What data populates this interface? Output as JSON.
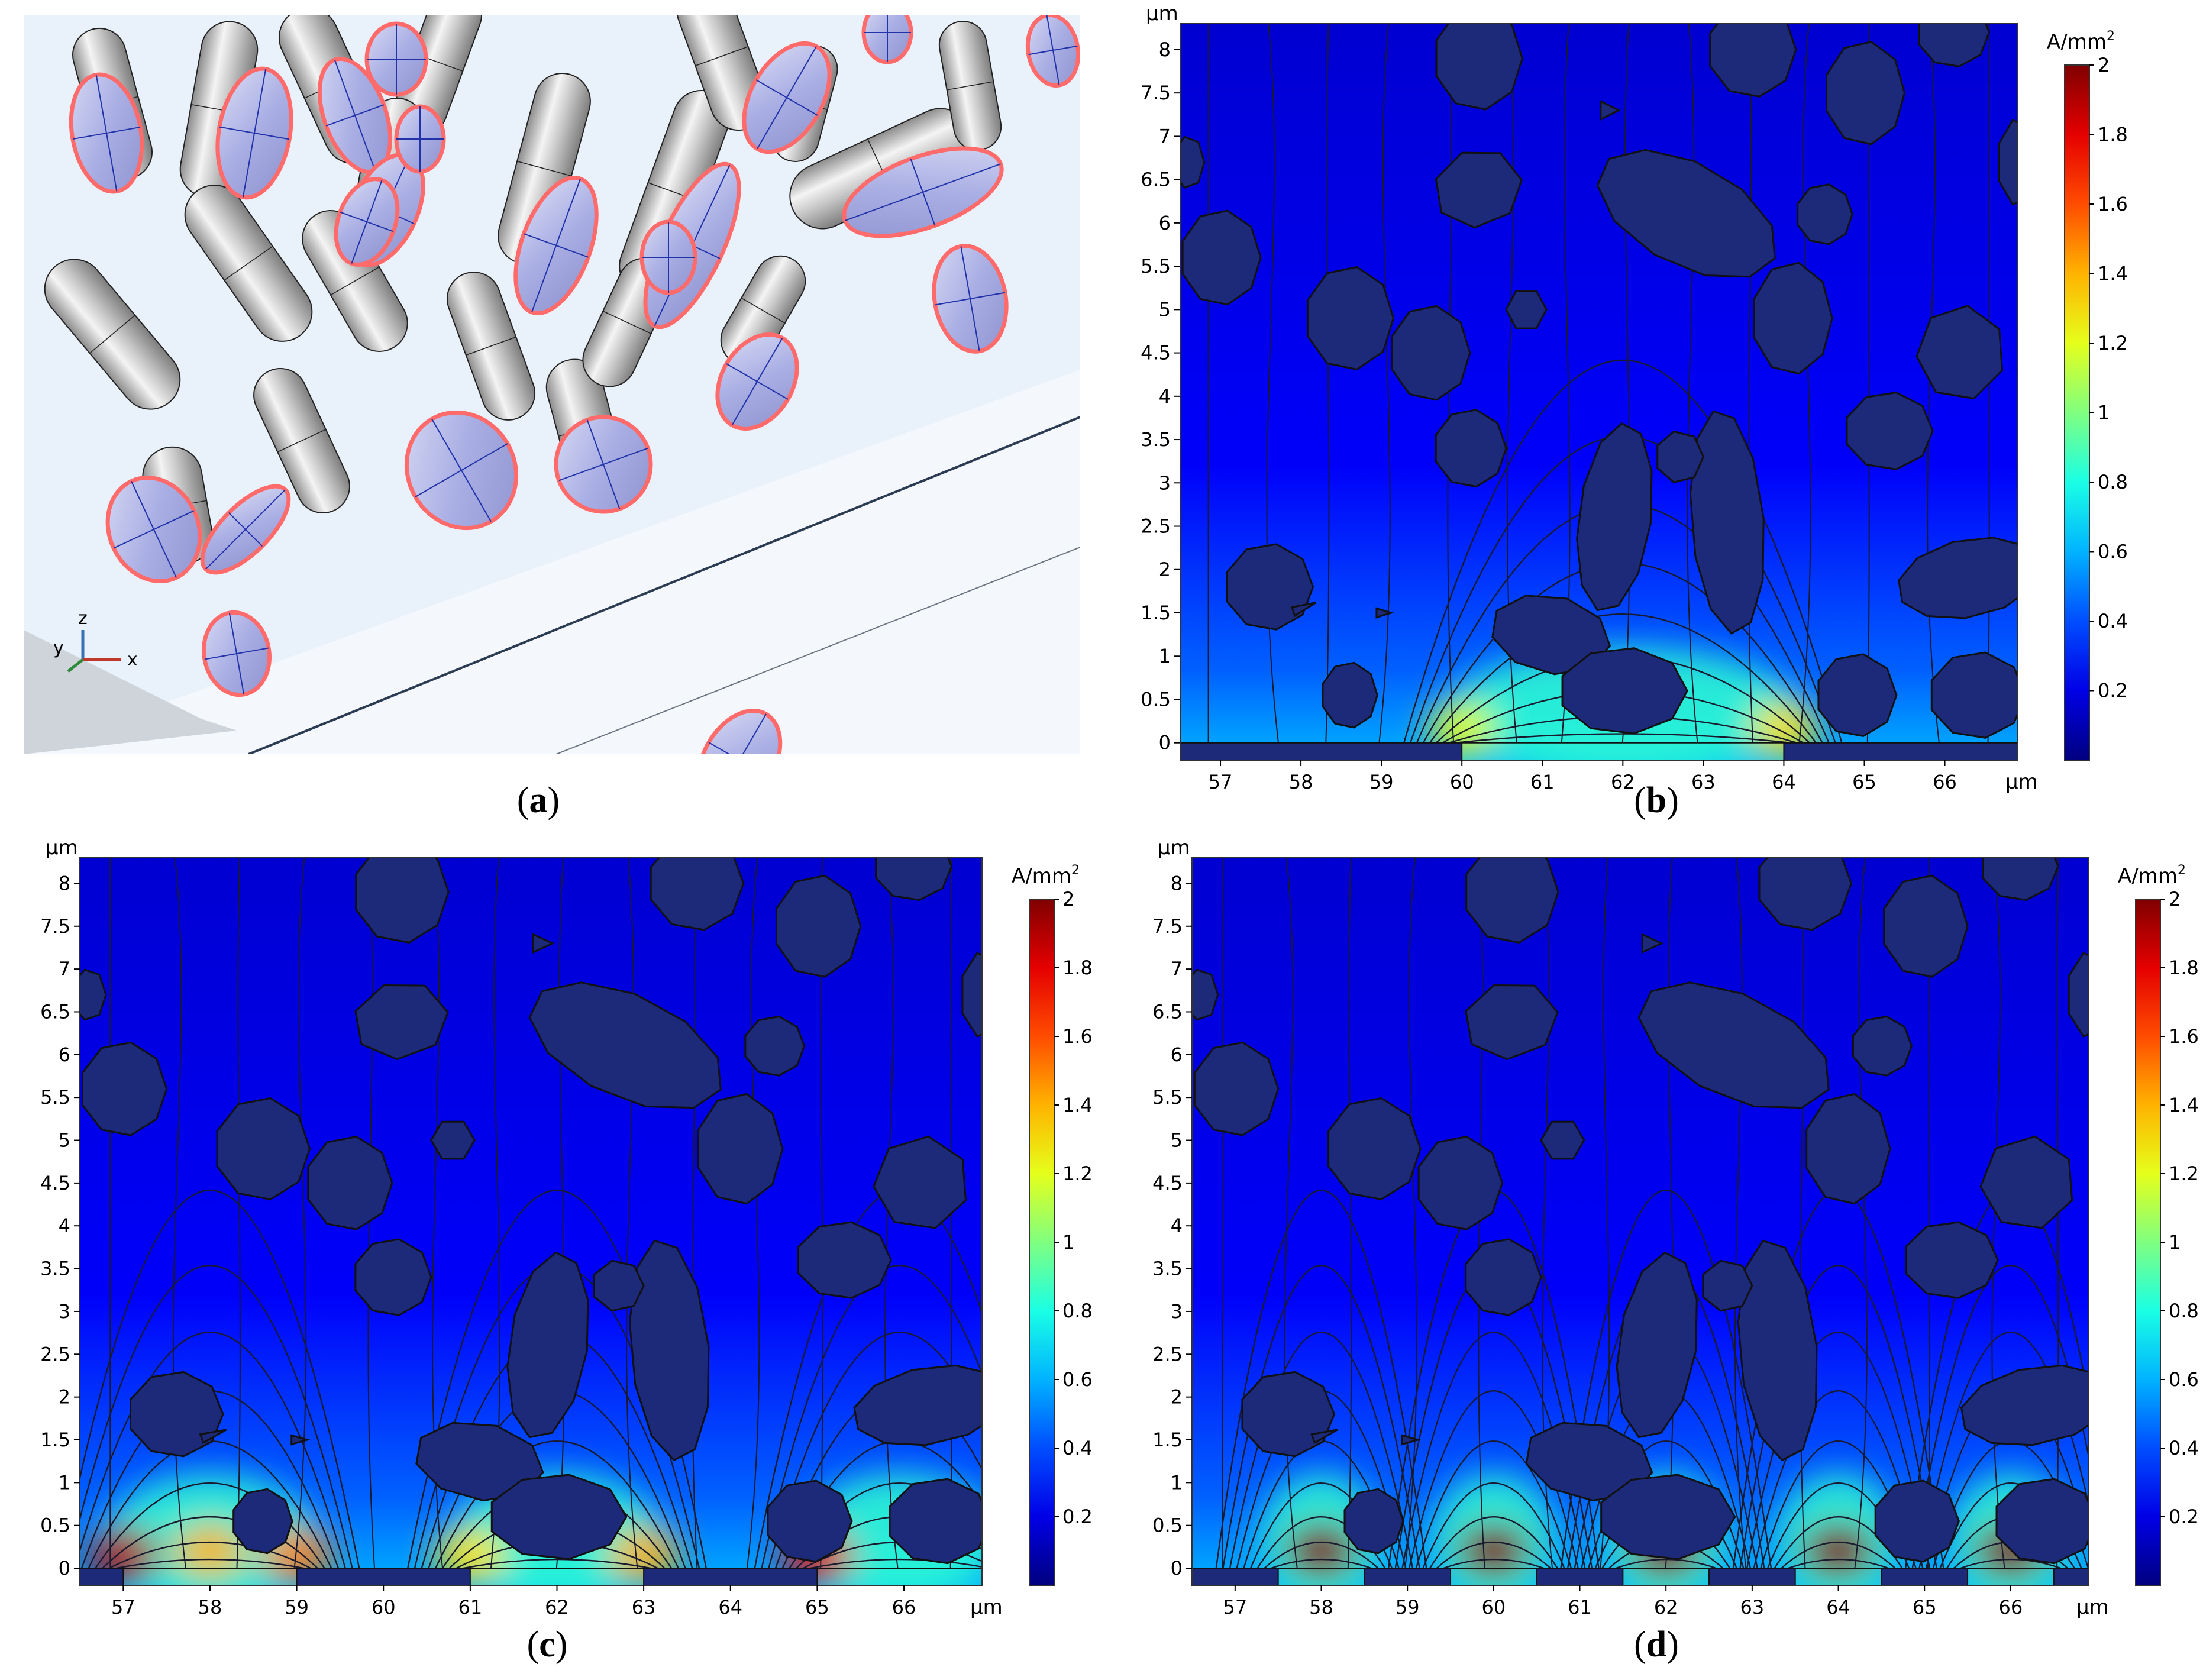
{
  "captions": [
    "a",
    "b",
    "c",
    "d"
  ],
  "axis": {
    "unit": "µm",
    "x_ticks": [
      57,
      58,
      59,
      60,
      61,
      62,
      63,
      64,
      65,
      66
    ],
    "y_ticks": [
      "0",
      "0.5",
      "1",
      "1.5",
      "2",
      "2.5",
      "3",
      "3.5",
      "4",
      "4.5",
      "5",
      "5.5",
      "6",
      "6.5",
      "7",
      "7.5",
      "8"
    ]
  },
  "colorbar": {
    "unit": "A/mm",
    "unit_superscript": "2",
    "ticks": [
      "0.2",
      "0.4",
      "0.6",
      "0.8",
      "1",
      "1.2",
      "1.4",
      "1.6",
      "1.8",
      "2"
    ],
    "max_label": "2",
    "range": [
      0,
      2
    ]
  },
  "triad": {
    "z": "z",
    "y": "y",
    "x": "x"
  },
  "chart_data": [
    {
      "panel": "b",
      "type": "heatmap",
      "xlim": [
        56.5,
        66.9
      ],
      "ylim": [
        -0.2,
        8.3
      ],
      "electrode_segments_x": [
        [
          56.5,
          60.0
        ],
        [
          64.0,
          66.9
        ]
      ],
      "open_windows_x": [
        [
          60.0,
          64.0
        ]
      ],
      "hot_spots": [
        {
          "x": 60.0,
          "y": 0.0,
          "value": 1.2
        },
        {
          "x": 64.0,
          "y": 0.0,
          "value": 1.3
        }
      ]
    },
    {
      "panel": "c",
      "type": "heatmap",
      "xlim": [
        56.5,
        66.9
      ],
      "ylim": [
        -0.2,
        8.3
      ],
      "electrode_segments_x": [
        [
          56.5,
          57.0
        ],
        [
          59.0,
          61.0
        ],
        [
          63.0,
          65.0
        ]
      ],
      "open_windows_x": [
        [
          57.0,
          59.0
        ],
        [
          61.0,
          63.0
        ],
        [
          65.0,
          66.9
        ]
      ],
      "hot_spots": [
        {
          "x": 57.0,
          "y": 0.0,
          "value": 1.9
        },
        {
          "x": 58.0,
          "y": 0.05,
          "value": 1.4
        },
        {
          "x": 59.0,
          "y": 0.0,
          "value": 1.5
        },
        {
          "x": 61.0,
          "y": 0.0,
          "value": 1.3
        },
        {
          "x": 63.0,
          "y": 0.0,
          "value": 1.4
        },
        {
          "x": 65.0,
          "y": 0.0,
          "value": 1.8
        }
      ]
    },
    {
      "panel": "d",
      "type": "heatmap",
      "xlim": [
        56.5,
        66.9
      ],
      "ylim": [
        -0.2,
        8.3
      ],
      "electrode_segments_x": [
        [
          56.5,
          57.5
        ],
        [
          58.5,
          59.5
        ],
        [
          60.5,
          61.5
        ],
        [
          62.5,
          63.5
        ],
        [
          64.5,
          65.5
        ],
        [
          66.5,
          66.9
        ]
      ],
      "open_windows_x": [
        [
          57.5,
          58.5
        ],
        [
          59.5,
          60.5
        ],
        [
          61.5,
          62.5
        ],
        [
          63.5,
          64.5
        ],
        [
          65.5,
          66.5
        ]
      ],
      "hot_spots": [
        {
          "x": 58.0,
          "y": 0.05,
          "value": 2.0
        },
        {
          "x": 60.0,
          "y": 0.05,
          "value": 2.0
        },
        {
          "x": 62.0,
          "y": 0.05,
          "value": 2.0
        },
        {
          "x": 64.0,
          "y": 0.05,
          "value": 2.0
        },
        {
          "x": 66.0,
          "y": 0.05,
          "value": 2.0
        }
      ]
    }
  ]
}
